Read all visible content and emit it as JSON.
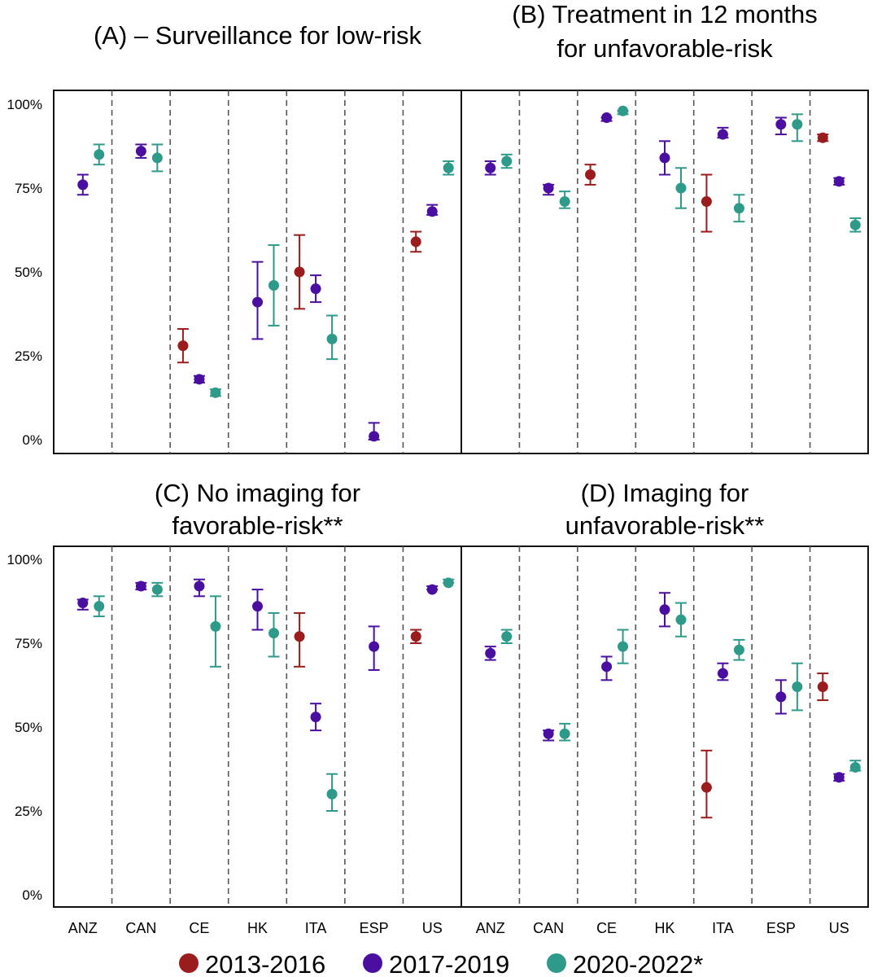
{
  "legend": [
    {
      "name": "2013-2016",
      "color": "#9b1c1c"
    },
    {
      "name": "2017-2019",
      "color": "#4a0fa0"
    },
    {
      "name": "2020-2022*",
      "color": "#2e9a8a"
    }
  ],
  "chart_data": [
    {
      "type": "scatter",
      "panel": "A",
      "title_lines": [
        "(A) – Surveillance for low-risk"
      ],
      "categories": [
        "ANZ",
        "CAN",
        "CE",
        "HK",
        "ITA",
        "ESP",
        "US"
      ],
      "y_tick_labels": [
        "0%",
        "25%",
        "50%",
        "75%",
        "100%"
      ],
      "ylim": [
        0,
        100
      ],
      "series": [
        {
          "name": "2013-2016",
          "points": [
            {
              "cat": "CE",
              "y": 28,
              "lo": 23,
              "hi": 33
            },
            {
              "cat": "ITA",
              "y": 50,
              "lo": 39,
              "hi": 61
            },
            {
              "cat": "US",
              "y": 59,
              "lo": 56,
              "hi": 62
            }
          ]
        },
        {
          "name": "2017-2019",
          "points": [
            {
              "cat": "ANZ",
              "y": 76,
              "lo": 73,
              "hi": 79
            },
            {
              "cat": "CAN",
              "y": 86,
              "lo": 84,
              "hi": 88
            },
            {
              "cat": "CE",
              "y": 18,
              "lo": 17,
              "hi": 19
            },
            {
              "cat": "HK",
              "y": 41,
              "lo": 30,
              "hi": 53
            },
            {
              "cat": "ITA",
              "y": 45,
              "lo": 41,
              "hi": 49
            },
            {
              "cat": "ESP",
              "y": 1,
              "lo": 0,
              "hi": 5
            },
            {
              "cat": "US",
              "y": 68,
              "lo": 67,
              "hi": 70
            }
          ]
        },
        {
          "name": "2020-2022*",
          "points": [
            {
              "cat": "ANZ",
              "y": 85,
              "lo": 82,
              "hi": 88
            },
            {
              "cat": "CAN",
              "y": 84,
              "lo": 80,
              "hi": 88
            },
            {
              "cat": "CE",
              "y": 14,
              "lo": 13,
              "hi": 15
            },
            {
              "cat": "HK",
              "y": 46,
              "lo": 34,
              "hi": 58
            },
            {
              "cat": "ITA",
              "y": 30,
              "lo": 24,
              "hi": 37
            },
            {
              "cat": "US",
              "y": 81,
              "lo": 79,
              "hi": 83
            }
          ]
        }
      ]
    },
    {
      "type": "scatter",
      "panel": "B",
      "title_lines": [
        "(B) Treatment in 12 months",
        "for unfavorable-risk"
      ],
      "categories": [
        "ANZ",
        "CAN",
        "CE",
        "HK",
        "ITA",
        "ESP",
        "US"
      ],
      "y_tick_labels": [
        "0%",
        "25%",
        "50%",
        "75%",
        "100%"
      ],
      "ylim": [
        0,
        100
      ],
      "series": [
        {
          "name": "2013-2016",
          "points": [
            {
              "cat": "CE",
              "y": 79,
              "lo": 76,
              "hi": 82
            },
            {
              "cat": "ITA",
              "y": 71,
              "lo": 62,
              "hi": 79
            },
            {
              "cat": "US",
              "y": 90,
              "lo": 89,
              "hi": 91
            }
          ]
        },
        {
          "name": "2017-2019",
          "points": [
            {
              "cat": "ANZ",
              "y": 81,
              "lo": 79,
              "hi": 83
            },
            {
              "cat": "CAN",
              "y": 75,
              "lo": 73,
              "hi": 76
            },
            {
              "cat": "CE",
              "y": 96,
              "lo": 95,
              "hi": 96
            },
            {
              "cat": "HK",
              "y": 84,
              "lo": 79,
              "hi": 89
            },
            {
              "cat": "ITA",
              "y": 91,
              "lo": 90,
              "hi": 93
            },
            {
              "cat": "ESP",
              "y": 94,
              "lo": 91,
              "hi": 96
            },
            {
              "cat": "US",
              "y": 77,
              "lo": 76,
              "hi": 78
            }
          ]
        },
        {
          "name": "2020-2022*",
          "points": [
            {
              "cat": "ANZ",
              "y": 83,
              "lo": 81,
              "hi": 85
            },
            {
              "cat": "CAN",
              "y": 71,
              "lo": 69,
              "hi": 74
            },
            {
              "cat": "CE",
              "y": 98,
              "lo": 97,
              "hi": 98
            },
            {
              "cat": "HK",
              "y": 75,
              "lo": 69,
              "hi": 81
            },
            {
              "cat": "ITA",
              "y": 69,
              "lo": 65,
              "hi": 73
            },
            {
              "cat": "ESP",
              "y": 94,
              "lo": 89,
              "hi": 97
            },
            {
              "cat": "US",
              "y": 64,
              "lo": 62,
              "hi": 66
            }
          ]
        }
      ]
    },
    {
      "type": "scatter",
      "panel": "C",
      "title_lines": [
        "(C) No imaging for",
        "favorable-risk**"
      ],
      "categories": [
        "ANZ",
        "CAN",
        "CE",
        "HK",
        "ITA",
        "ESP",
        "US"
      ],
      "x_tick_labels": [
        "ANZ",
        "CAN",
        "CE",
        "HK",
        "ITA",
        "ESP",
        "US"
      ],
      "y_tick_labels": [
        "0%",
        "25%",
        "50%",
        "75%",
        "100%"
      ],
      "ylim": [
        0,
        100
      ],
      "series": [
        {
          "name": "2013-2016",
          "points": [
            {
              "cat": "ITA",
              "y": 77,
              "lo": 68,
              "hi": 84
            },
            {
              "cat": "US",
              "y": 77,
              "lo": 75,
              "hi": 79
            }
          ]
        },
        {
          "name": "2017-2019",
          "points": [
            {
              "cat": "ANZ",
              "y": 87,
              "lo": 85,
              "hi": 88
            },
            {
              "cat": "CAN",
              "y": 92,
              "lo": 91,
              "hi": 93
            },
            {
              "cat": "CE",
              "y": 92,
              "lo": 89,
              "hi": 94
            },
            {
              "cat": "HK",
              "y": 86,
              "lo": 79,
              "hi": 91
            },
            {
              "cat": "ITA",
              "y": 53,
              "lo": 49,
              "hi": 57
            },
            {
              "cat": "ESP",
              "y": 74,
              "lo": 67,
              "hi": 80
            },
            {
              "cat": "US",
              "y": 91,
              "lo": 91,
              "hi": 92
            }
          ]
        },
        {
          "name": "2020-2022*",
          "points": [
            {
              "cat": "ANZ",
              "y": 86,
              "lo": 83,
              "hi": 89
            },
            {
              "cat": "CAN",
              "y": 91,
              "lo": 89,
              "hi": 93
            },
            {
              "cat": "CE",
              "y": 80,
              "lo": 68,
              "hi": 89
            },
            {
              "cat": "HK",
              "y": 78,
              "lo": 71,
              "hi": 84
            },
            {
              "cat": "ITA",
              "y": 30,
              "lo": 25,
              "hi": 36
            },
            {
              "cat": "US",
              "y": 93,
              "lo": 93,
              "hi": 94
            }
          ]
        }
      ]
    },
    {
      "type": "scatter",
      "panel": "D",
      "title_lines": [
        "(D) Imaging for",
        "unfavorable-risk**"
      ],
      "categories": [
        "ANZ",
        "CAN",
        "CE",
        "HK",
        "ITA",
        "ESP",
        "US"
      ],
      "x_tick_labels": [
        "ANZ",
        "CAN",
        "CE",
        "HK",
        "ITA",
        "ESP",
        "US"
      ],
      "y_tick_labels": [
        "0%",
        "25%",
        "50%",
        "75%",
        "100%"
      ],
      "ylim": [
        0,
        100
      ],
      "series": [
        {
          "name": "2013-2016",
          "points": [
            {
              "cat": "ITA",
              "y": 32,
              "lo": 23,
              "hi": 43
            },
            {
              "cat": "US",
              "y": 62,
              "lo": 58,
              "hi": 66
            }
          ]
        },
        {
          "name": "2017-2019",
          "points": [
            {
              "cat": "ANZ",
              "y": 72,
              "lo": 70,
              "hi": 74
            },
            {
              "cat": "CAN",
              "y": 48,
              "lo": 46,
              "hi": 49
            },
            {
              "cat": "CE",
              "y": 68,
              "lo": 64,
              "hi": 71
            },
            {
              "cat": "HK",
              "y": 85,
              "lo": 80,
              "hi": 90
            },
            {
              "cat": "ITA",
              "y": 66,
              "lo": 64,
              "hi": 69
            },
            {
              "cat": "ESP",
              "y": 59,
              "lo": 54,
              "hi": 64
            },
            {
              "cat": "US",
              "y": 35,
              "lo": 34,
              "hi": 36
            }
          ]
        },
        {
          "name": "2020-2022*",
          "points": [
            {
              "cat": "ANZ",
              "y": 77,
              "lo": 75,
              "hi": 79
            },
            {
              "cat": "CAN",
              "y": 48,
              "lo": 46,
              "hi": 51
            },
            {
              "cat": "CE",
              "y": 74,
              "lo": 69,
              "hi": 79
            },
            {
              "cat": "HK",
              "y": 82,
              "lo": 77,
              "hi": 87
            },
            {
              "cat": "ITA",
              "y": 73,
              "lo": 70,
              "hi": 76
            },
            {
              "cat": "ESP",
              "y": 62,
              "lo": 55,
              "hi": 69
            },
            {
              "cat": "US",
              "y": 38,
              "lo": 37,
              "hi": 40
            }
          ]
        }
      ]
    }
  ]
}
